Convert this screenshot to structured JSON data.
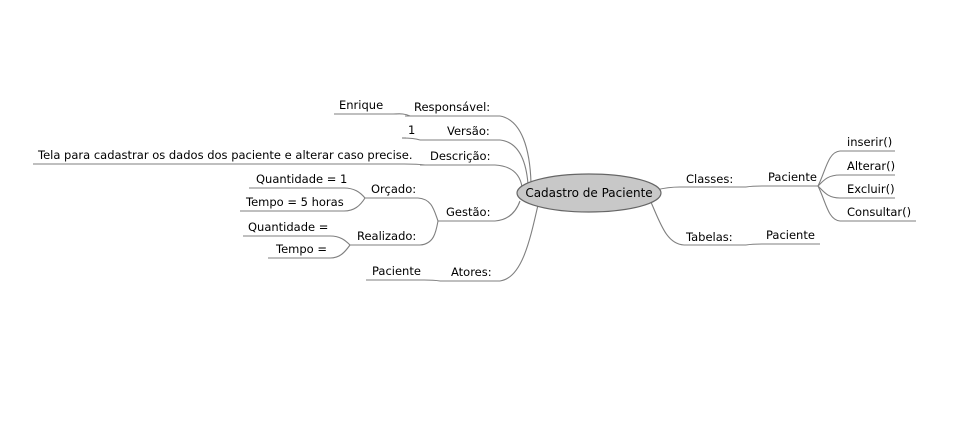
{
  "central_topic": "Cadastro de Paciente",
  "left": {
    "responsavel": {
      "label": "Responsável:",
      "value": "Enrique"
    },
    "versao": {
      "label": "Versão:",
      "value": "1"
    },
    "descricao": {
      "label": "Descrição:",
      "value": "Tela para cadastrar os dados dos paciente e alterar caso precise."
    },
    "gestao": {
      "label": "Gestão:",
      "orcado": {
        "label": "Orçado:",
        "quantidade": "Quantidade = 1",
        "tempo": "Tempo = 5 horas"
      },
      "realizado": {
        "label": "Realizado:",
        "quantidade": "Quantidade =",
        "tempo": "Tempo ="
      }
    },
    "atores": {
      "label": "Atores:",
      "value": "Paciente"
    }
  },
  "right": {
    "classes": {
      "label": "Classes:",
      "class_name": "Paciente",
      "methods": [
        "inserir()",
        "Alterar()",
        "Excluir()",
        "Consultar()"
      ]
    },
    "tabelas": {
      "label": "Tabelas:",
      "value": "Paciente"
    }
  },
  "colors": {
    "center_fill": "#c8c8c8",
    "center_stroke": "#666666",
    "lines": "#7f7f7f"
  }
}
